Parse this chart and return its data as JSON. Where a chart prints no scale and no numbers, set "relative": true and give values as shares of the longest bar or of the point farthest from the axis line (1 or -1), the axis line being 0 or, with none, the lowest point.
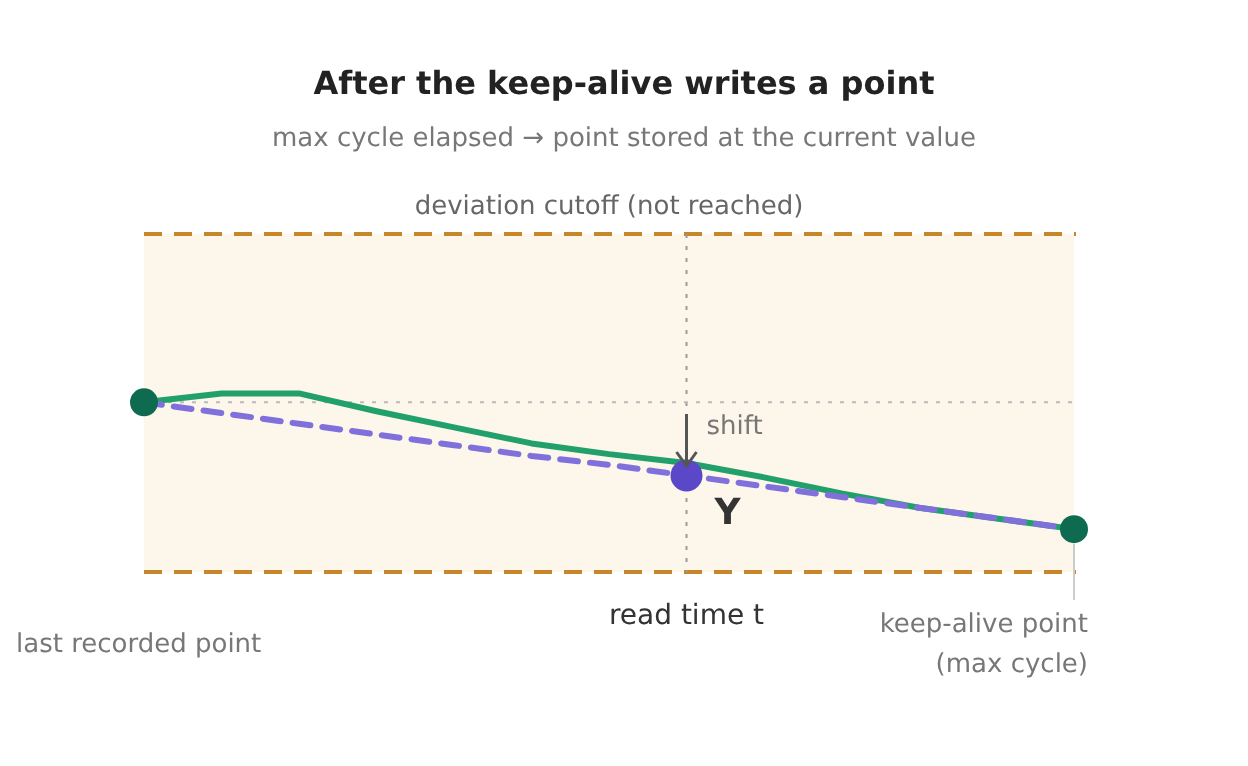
{
  "chart_data": {
    "type": "line",
    "relative": true,
    "title": "After the keep-alive writes a point",
    "subtitle": "max cycle elapsed → point stored at the current value",
    "categories": [
      null,
      null,
      null,
      null,
      null,
      null,
      null,
      null,
      null,
      null,
      null,
      null,
      null
    ],
    "series": [
      {
        "color": "#22a06b",
        "values": [
          0.95,
          1,
          1,
          0.9,
          0.81,
          0.72,
          0.66,
          0.61,
          0.53,
          0.44,
          0.36,
          0.3,
          0.24
        ],
        "line_style": "solid",
        "marker": "none"
      },
      {
        "color": "#8070dc",
        "values": [
          0.95,
          0.89,
          0.83,
          0.77,
          0.71,
          0.65,
          0.6,
          0.54,
          0.48,
          0.42,
          0.36,
          0.3,
          0.24
        ],
        "line_style": "dashed",
        "marker": "none"
      }
    ],
    "ref_lines": [
      {
        "axis": "y",
        "value": 0.95,
        "color": "#bbbbbb",
        "line_style": "dotted"
      }
    ],
    "annotations": [
      "deviation cutoff (not reached)",
      "read time t",
      "last recorded point",
      "keep-alive point\n(max cycle)",
      "shift",
      "Y"
    ]
  }
}
